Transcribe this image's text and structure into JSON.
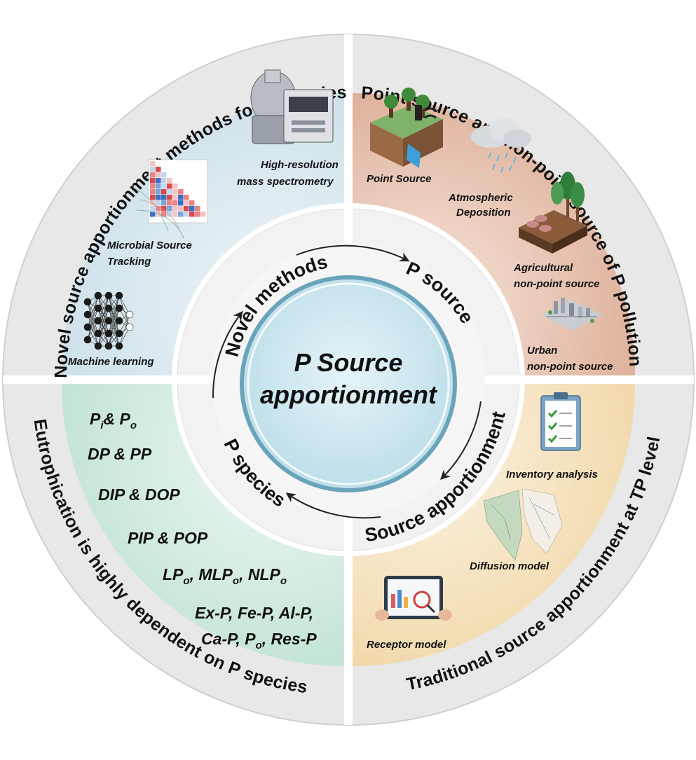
{
  "center": {
    "line1": "P Source",
    "line2": "apportionment"
  },
  "inner_ring": {
    "novel_methods": "Novel methods",
    "p_source": "P source",
    "source_apportionment": "Source apportionment",
    "p_species": "P species"
  },
  "outer_ring": {
    "top_left": "Novel source apportionment methods for P species",
    "top_right": "Point source and non-point source of P pollution",
    "bottom_right": "Traditional source apportionment at TP level",
    "bottom_left": "Eutrophication is highly dependent on P species"
  },
  "quadrant_novel": {
    "hrms": [
      "High-resolution",
      "mass spectrometry"
    ],
    "mst": [
      "Microbial Source",
      "Tracking"
    ],
    "ml": "Machine learning"
  },
  "quadrant_source": {
    "point": "Point Source",
    "atmos": [
      "Atmospheric",
      "Deposition"
    ],
    "agri": [
      "Agricultural",
      "non-point source"
    ],
    "urban": [
      "Urban",
      "non-point source"
    ]
  },
  "quadrant_traditional": {
    "inventory": "Inventory analysis",
    "diffusion": "Diffusion model",
    "receptor": "Receptor model"
  },
  "quadrant_species": {
    "pi": "P",
    "pi_sub": "i",
    "amp": "& P",
    "po_sub": "o",
    "dp_pp": "DP & PP",
    "dip_dop": "DIP & DOP",
    "pip_pop": "PIP & POP",
    "lpo_a": "LP",
    "lpo_b": "o",
    "lpo_c": ", MLP",
    "lpo_d": "o",
    "lpo_e": ", NLP",
    "lpo_f": "o",
    "ex_line": "Ex-P, Fe-P, Al-P,",
    "ca_a": "Ca-P, P",
    "ca_b": "o",
    "ca_c": ", Res-P"
  },
  "colors": {
    "outer_ring": "#e6e6e6",
    "novel_quadrant": "#d6e6ee",
    "source_quadrant": "#e9c2ad",
    "traditional_quadrant": "#f6e3bf",
    "species_quadrant": "#cfe9dd",
    "center_fill": "#cfe8f0",
    "center_ring": "#7fb4c8"
  }
}
